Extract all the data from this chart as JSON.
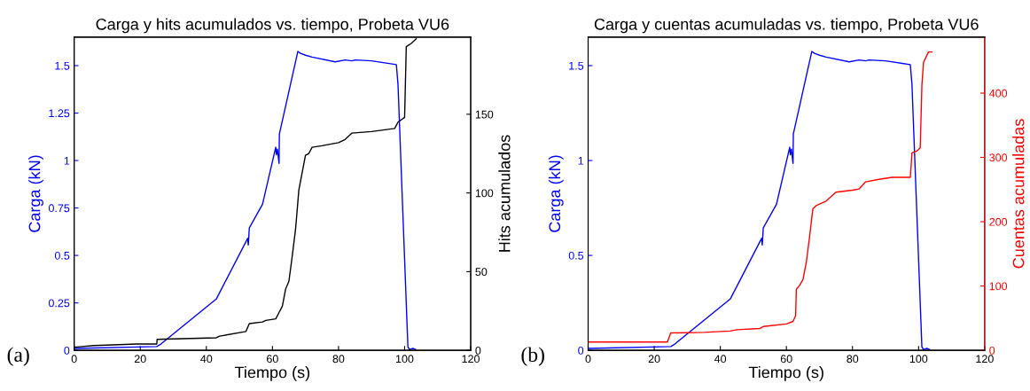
{
  "chart_data": [
    {
      "type": "line",
      "title": "Carga y hits acumulados vs. tiempo, Probeta VU6",
      "xlabel": "Tiempo (s)",
      "ylabel": "Carga (kN)",
      "y2label": "Hits acumulados",
      "annotations": [
        "(a)"
      ],
      "xlim": [
        0,
        120
      ],
      "xticks": [
        0,
        20,
        40,
        60,
        80,
        100,
        120
      ],
      "ylim": [
        0,
        1.65
      ],
      "yticks": [
        0,
        0.25,
        0.5,
        0.75,
        1,
        1.25,
        1.5
      ],
      "y2lim": [
        0,
        199
      ],
      "y2ticks": [
        0,
        50,
        100,
        150
      ],
      "grid": false,
      "legend": false,
      "series": [
        {
          "color": "#0000ff",
          "x": [
            0,
            25,
            26,
            43,
            52.5,
            52.7,
            53,
            57,
            61,
            61.2,
            61.5,
            62,
            62.1,
            67.7,
            68.5,
            70,
            72,
            79,
            82,
            84,
            85,
            90,
            97.5,
            98,
            101,
            101.5,
            102.5,
            103.3
          ],
          "values": [
            0.01,
            0.02,
            0.03,
            0.27,
            0.59,
            0.555,
            0.645,
            0.77,
            1.07,
            1.03,
            1.06,
            0.985,
            1.14,
            1.575,
            1.565,
            1.555,
            1.545,
            1.52,
            1.53,
            1.525,
            1.53,
            1.525,
            1.505,
            1.4,
            0.017,
            0.005,
            0.01,
            0.005
          ]
        },
        {
          "color": "#000000",
          "axis": "y2",
          "x": [
            0,
            6,
            19,
            25,
            25.1,
            43,
            44,
            52,
            53,
            57,
            58,
            61,
            62,
            63,
            64,
            65,
            66,
            67,
            68,
            69,
            70,
            71,
            72,
            75,
            80,
            82,
            84,
            90,
            97,
            98,
            100,
            100.5,
            102,
            103.5
          ],
          "values": [
            2,
            3,
            4,
            4,
            7,
            8,
            9,
            12,
            17,
            18,
            19,
            20,
            24,
            28,
            39,
            44,
            60,
            77,
            102,
            113,
            124,
            125,
            129,
            130,
            132,
            134,
            138,
            139,
            141,
            145,
            148,
            193,
            195,
            198
          ]
        }
      ]
    },
    {
      "type": "line",
      "title": "Carga y cuentas acumuladas vs. tiempo, Probeta VU6",
      "xlabel": "Tiempo (s)",
      "ylabel": "Carga (kN)",
      "y2label": "Cuentas acumuladas",
      "annotations": [
        "(b)"
      ],
      "xlim": [
        0,
        120
      ],
      "xticks": [
        0,
        20,
        40,
        60,
        80,
        100,
        120
      ],
      "ylim": [
        0,
        1.65
      ],
      "yticks": [
        0,
        0.5,
        1,
        1.5
      ],
      "y2lim": [
        0,
        487
      ],
      "y2ticks": [
        0,
        100,
        200,
        300,
        400
      ],
      "grid": false,
      "legend": false,
      "series": [
        {
          "color": "#0000ff",
          "x": [
            0,
            25,
            26,
            43,
            52.5,
            52.7,
            53,
            57,
            61,
            61.2,
            61.5,
            62,
            62.1,
            67.7,
            68.5,
            70,
            72,
            79,
            82,
            84,
            85,
            90,
            97.5,
            98,
            101,
            101.5,
            102.5,
            103.3
          ],
          "values": [
            0.01,
            0.02,
            0.03,
            0.27,
            0.59,
            0.555,
            0.645,
            0.77,
            1.07,
            1.03,
            1.06,
            0.985,
            1.14,
            1.575,
            1.565,
            1.555,
            1.545,
            1.52,
            1.53,
            1.525,
            1.53,
            1.525,
            1.505,
            1.4,
            0.017,
            0.005,
            0.01,
            0.005
          ]
        },
        {
          "color": "#ff0000",
          "axis": "y2",
          "x": [
            0,
            24,
            25,
            35,
            43,
            45,
            52,
            53,
            60,
            62,
            62.8,
            63,
            64,
            65,
            66,
            67,
            68,
            69,
            72,
            75,
            80,
            82,
            84,
            88,
            92,
            97.5,
            98,
            99.5,
            100.5,
            101,
            101.5,
            103,
            104
          ],
          "values": [
            13,
            13,
            27,
            28,
            30,
            32,
            34,
            37,
            41,
            45,
            54,
            95,
            101,
            110,
            136,
            176,
            220,
            225,
            232,
            246,
            249,
            251,
            262,
            266,
            269,
            269,
            307,
            310,
            315,
            412,
            448,
            464,
            464
          ]
        }
      ]
    }
  ]
}
